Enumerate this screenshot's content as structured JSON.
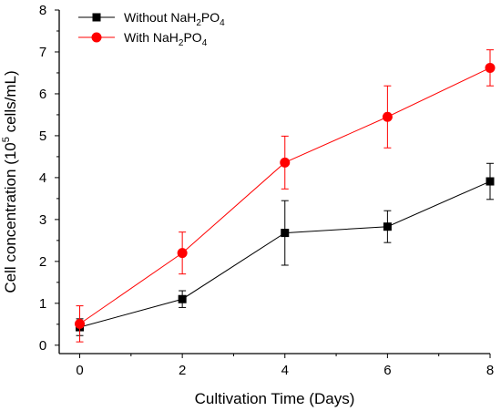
{
  "chart_data": {
    "type": "line",
    "xlabel": "Cultivation Time (Days)",
    "ylabel": {
      "before": "Cell concentration (10",
      "sup": "5",
      "after": " cells/mL)"
    },
    "xlim": [
      -0.4,
      8.0
    ],
    "ylim": [
      -0.2,
      8.0
    ],
    "xticks": [
      "0",
      "2",
      "4",
      "6",
      "8"
    ],
    "yticks": [
      "0",
      "1",
      "2",
      "3",
      "4",
      "5",
      "6",
      "7",
      "8"
    ],
    "grid": false,
    "legend_position": "top-left",
    "series": [
      {
        "name": "Without NaH2PO4",
        "legend": {
          "base": "Without NaH",
          "sub1": "2",
          "mid": "PO",
          "sub2": "4"
        },
        "marker": "square",
        "color": "#000000",
        "x": [
          0,
          2,
          4,
          6,
          8
        ],
        "y": [
          0.43,
          1.1,
          2.68,
          2.83,
          3.91
        ],
        "err": [
          0.2,
          0.2,
          0.77,
          0.38,
          0.43
        ]
      },
      {
        "name": "With NaH2PO4",
        "legend": {
          "base": "With NaH",
          "sub1": "2",
          "mid": "PO",
          "sub2": "4"
        },
        "marker": "circle",
        "color": "#ff0000",
        "x": [
          0,
          2,
          4,
          6,
          8
        ],
        "y": [
          0.51,
          2.2,
          4.36,
          5.45,
          6.62
        ],
        "err": [
          0.43,
          0.5,
          0.63,
          0.74,
          0.43
        ]
      }
    ]
  }
}
